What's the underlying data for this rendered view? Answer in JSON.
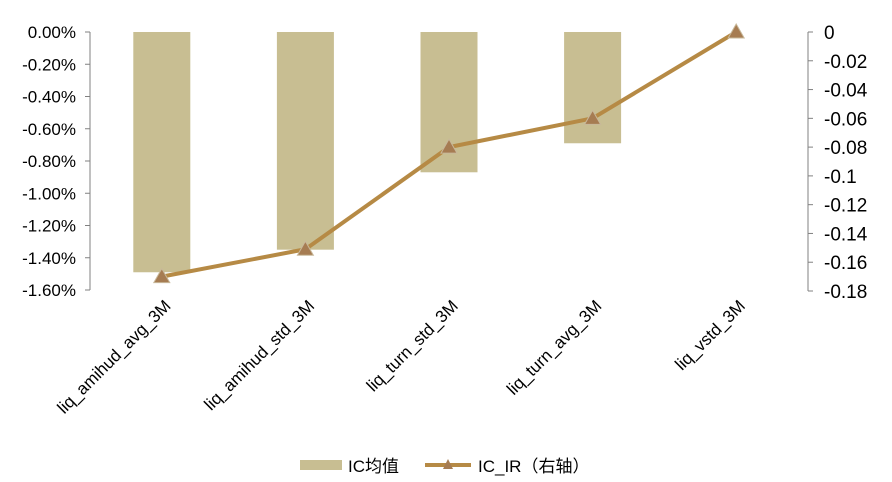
{
  "chart_data": {
    "type": "bar",
    "title": "",
    "xlabel": "",
    "ylabel": "",
    "categories": [
      "liq_amihud_avg_3M",
      "liq_amihud_std_3M",
      "liq_turn_std_3M",
      "liq_turn_avg_3M",
      "liq_vstd_3M"
    ],
    "series": [
      {
        "name": "IC均值",
        "type": "bar",
        "axis": "left",
        "color": "#C8BE92",
        "values": [
          -1.49,
          -1.35,
          -0.87,
          -0.69,
          0.0
        ]
      },
      {
        "name": "IC_IR（右轴）",
        "type": "line",
        "axis": "right",
        "color": "#B68A45",
        "marker_color": "#A67C52",
        "values": [
          -0.17,
          -0.151,
          -0.08,
          -0.06,
          0.0
        ]
      }
    ],
    "y_left": {
      "min": -1.6,
      "max": 0.0,
      "ticks": [
        0.0,
        -0.2,
        -0.4,
        -0.6,
        -0.8,
        -1.0,
        -1.2,
        -1.4,
        -1.6
      ],
      "tick_labels": [
        "0.00%",
        "-0.20%",
        "-0.40%",
        "-0.60%",
        "-0.80%",
        "-1.00%",
        "-1.20%",
        "-1.40%",
        "-1.60%"
      ]
    },
    "y_right": {
      "min": -0.18,
      "max": 0.0,
      "ticks": [
        0,
        -0.02,
        -0.04,
        -0.06,
        -0.08,
        -0.1,
        -0.12,
        -0.14,
        -0.16,
        -0.18
      ],
      "tick_labels": [
        "0",
        "-0.02",
        "-0.04",
        "-0.06",
        "-0.08",
        "-0.1",
        "-0.12",
        "-0.14",
        "-0.16",
        "-0.18"
      ]
    },
    "grid": false,
    "legend_position": "bottom-center"
  }
}
